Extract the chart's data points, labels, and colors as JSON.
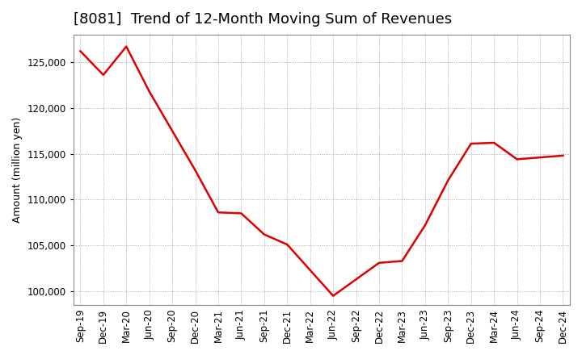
{
  "title": "[8081]  Trend of 12-Month Moving Sum of Revenues",
  "ylabel": "Amount (million yen)",
  "line_color": "#dd0000",
  "background_color": "#ffffff",
  "plot_bg_color": "#ffffff",
  "grid_color": "#999999",
  "x_labels": [
    "Sep-19",
    "Dec-19",
    "Mar-20",
    "Jun-20",
    "Sep-20",
    "Dec-20",
    "Mar-21",
    "Jun-21",
    "Sep-21",
    "Dec-21",
    "Mar-22",
    "Jun-22",
    "Sep-22",
    "Dec-22",
    "Mar-23",
    "Jun-23",
    "Sep-23",
    "Dec-23",
    "Mar-24",
    "Jun-24",
    "Sep-24",
    "Dec-24"
  ],
  "values": [
    126200,
    123600,
    126700,
    121800,
    117500,
    113200,
    108600,
    108500,
    106200,
    105100,
    102300,
    99500,
    101300,
    103100,
    103300,
    107200,
    112100,
    116100,
    116200,
    114400,
    114600,
    114800
  ],
  "ylim": [
    98500,
    128000
  ],
  "yticks": [
    100000,
    105000,
    110000,
    115000,
    120000,
    125000
  ],
  "title_fontsize": 13,
  "tick_fontsize": 8.5,
  "ylabel_fontsize": 9
}
